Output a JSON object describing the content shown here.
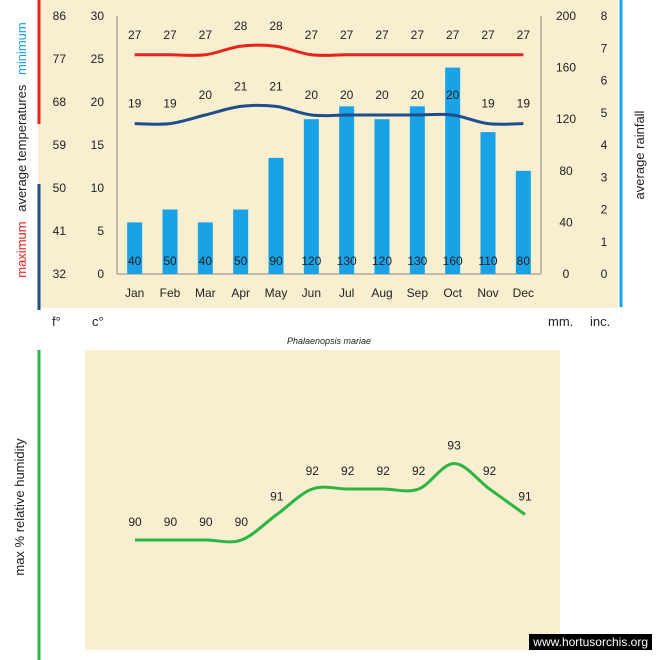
{
  "colors": {
    "parchment": "#f7efcf",
    "max_temp": "#e8231e",
    "min_temp": "#1f4e8c",
    "rainfall": "#19a2e6",
    "rainfall_axis": "#19a2e6",
    "humidity": "#2db544",
    "text": "#222222",
    "axis": "#888888"
  },
  "species": "Phalaenopsis mariae",
  "credit": "www.hortusorchis.org",
  "temp_chart": {
    "months": [
      "Jan",
      "Feb",
      "Mar",
      "Apr",
      "May",
      "Jun",
      "Jul",
      "Aug",
      "Sep",
      "Oct",
      "Nov",
      "Dec"
    ],
    "axis_units": {
      "fahrenheit": "f°",
      "celsius": "c°",
      "mm": "mm.",
      "inches": "inc."
    },
    "fahrenheit_ticks": [
      "86",
      "77",
      "68",
      "59",
      "50",
      "41",
      "32"
    ],
    "celsius_ticks": [
      "30",
      "25",
      "20",
      "15",
      "10",
      "5",
      "0"
    ],
    "mm_ticks": [
      "200",
      "160",
      "120",
      "80",
      "40",
      "0"
    ],
    "inch_ticks": [
      "8",
      "7",
      "6",
      "5",
      "4",
      "3",
      "2",
      "1",
      "0"
    ],
    "left_label": {
      "maximum": "maximum",
      "average_temperatures": "average  temperatures",
      "minimum": "minimum"
    },
    "right_label": "average rainfall"
  },
  "humidity_chart": {
    "y_label": "max %  relative humidity"
  },
  "chart_data": [
    {
      "type": "bar",
      "categories": [
        "Jan",
        "Feb",
        "Mar",
        "Apr",
        "May",
        "Jun",
        "Jul",
        "Aug",
        "Sep",
        "Oct",
        "Nov",
        "Dec"
      ],
      "series": [
        {
          "values": [
            40,
            50,
            40,
            50,
            90,
            120,
            130,
            120,
            130,
            160,
            110,
            80
          ]
        }
      ],
      "ylim": [
        0,
        200
      ],
      "ylabel": "average rainfall",
      "grid": false
    },
    {
      "type": "line",
      "categories": [
        "Jan",
        "Feb",
        "Mar",
        "Apr",
        "May",
        "Jun",
        "Jul",
        "Aug",
        "Sep",
        "Oct",
        "Nov",
        "Dec"
      ],
      "series": [
        {
          "name": "maximum",
          "values": [
            27,
            27,
            27,
            28,
            28,
            27,
            27,
            27,
            27,
            27,
            27,
            27
          ]
        },
        {
          "name": "minimum",
          "values": [
            19,
            19,
            20,
            21,
            21,
            20,
            20,
            20,
            20,
            20,
            19,
            19
          ]
        }
      ],
      "ylim": [
        0,
        30
      ],
      "ylabel": "average  temperatures",
      "grid": false
    },
    {
      "type": "line",
      "categories": [
        "Jan",
        "Feb",
        "Mar",
        "Apr",
        "May",
        "Jun",
        "Jul",
        "Aug",
        "Sep",
        "Oct",
        "Nov",
        "Dec"
      ],
      "series": [
        {
          "values": [
            90,
            90,
            90,
            90,
            91,
            92,
            92,
            92,
            92,
            93,
            92,
            91
          ]
        }
      ],
      "ylabel": "max %  relative humidity",
      "grid": false
    }
  ]
}
